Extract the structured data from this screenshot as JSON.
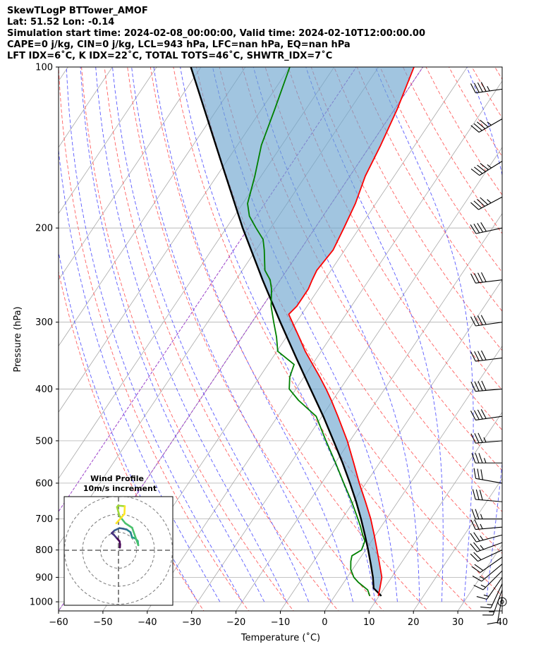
{
  "header": {
    "title": "SkewTLogP BTTower_AMOF",
    "location": "Lat: 51.52   Lon: -0.14",
    "times": "Simulation start time: 2024-02-08_00:00:00, Valid time: 2024-02-10T12:00:00.00",
    "indices1": "CAPE=0 j/kg, CIN=0 j/kg, LCL=943 hPa, LFC=nan hPa, EQ=nan hPa",
    "indices2": "LFT IDX=6˚C, K IDX=22˚C, TOTAL TOTS=46˚C, SHWTR_IDX=7˚C"
  },
  "chart_data": {
    "type": "line",
    "skew_t": true,
    "xlabel": "Temperature (˚C)",
    "ylabel": "Pressure (hPa)",
    "xlim": [
      -60,
      40
    ],
    "ylim": [
      1040,
      100
    ],
    "yscale": "log",
    "xticks": [
      -60,
      -50,
      -40,
      -30,
      -20,
      -10,
      0,
      10,
      20,
      30,
      40
    ],
    "xtick_labels": [
      "−60",
      "−50",
      "−40",
      "−30",
      "−20",
      "−10",
      "0",
      "10",
      "20",
      "30",
      "40"
    ],
    "yticks": [
      100,
      200,
      300,
      400,
      500,
      600,
      700,
      800,
      900,
      1000
    ],
    "grid": true,
    "fill_between_parcel_and_temperature": true,
    "series": [
      {
        "key": "temperature",
        "color": "#ff0000",
        "p": [
          975,
          950,
          900,
          850,
          800,
          750,
          700,
          650,
          600,
          550,
          500,
          450,
          420,
          400,
          380,
          360,
          340,
          320,
          300,
          290,
          280,
          260,
          250,
          240,
          220,
          200,
          180,
          160,
          140,
          120,
          100
        ],
        "t": [
          9.8,
          9.2,
          7.8,
          5.3,
          2.6,
          -0.3,
          -3.5,
          -7.3,
          -11.5,
          -15.8,
          -20.6,
          -26.4,
          -30.3,
          -33.2,
          -36.4,
          -39.9,
          -43.6,
          -47.1,
          -50.9,
          -52.9,
          -52.3,
          -52.3,
          -52.8,
          -53.2,
          -52.6,
          -53.5,
          -54.6,
          -56.5,
          -57.7,
          -59.4,
          -62.0
        ]
      },
      {
        "key": "dewpoint",
        "color": "#008000",
        "p": [
          975,
          950,
          920,
          900,
          870,
          840,
          820,
          800,
          770,
          750,
          720,
          700,
          650,
          600,
          550,
          500,
          450,
          420,
          400,
          380,
          360,
          340,
          320,
          300,
          280,
          260,
          250,
          240,
          220,
          210,
          200,
          190,
          180,
          160,
          140,
          120,
          100
        ],
        "t": [
          7.9,
          6.5,
          3.3,
          1.5,
          -0.4,
          -1.6,
          -2.2,
          -0.9,
          -1.5,
          -2.9,
          -4.9,
          -6.4,
          -10.4,
          -15.0,
          -19.9,
          -25.4,
          -31.3,
          -37.7,
          -41.5,
          -43.2,
          -44.1,
          -49.8,
          -52.2,
          -55.1,
          -58.1,
          -60.6,
          -62.3,
          -64.9,
          -68.1,
          -70.0,
          -73.3,
          -76.6,
          -78.9,
          -81.4,
          -84.6,
          -87.0,
          -90.0
        ]
      },
      {
        "key": "parcel",
        "color": "#000000",
        "p": [
          975,
          943,
          900,
          850,
          800,
          750,
          700,
          650,
          600,
          550,
          500,
          450,
          400,
          350,
          300,
          250,
          200,
          150,
          100
        ],
        "t": [
          10.5,
          7.6,
          5.8,
          3.3,
          0.6,
          -2.4,
          -5.7,
          -9.4,
          -13.6,
          -18.3,
          -23.7,
          -29.7,
          -36.7,
          -44.6,
          -53.6,
          -64.0,
          -76.3,
          -91.3,
          -112.3
        ]
      }
    ],
    "hodograph": {
      "title": "Wind Profile",
      "subtitle": "10m/s increment",
      "ring_speeds": [
        10,
        20,
        30
      ],
      "u": [
        0.8,
        0.9,
        0.6,
        -1.2,
        -2.5,
        -3.8,
        -2.2,
        0.5,
        2.5,
        4.6,
        6.7,
        7.5,
        9.6,
        10.7,
        11.0,
        7.6,
        3.8,
        0.6,
        -0.8,
        -0.2,
        3.5,
        3.3,
        -1.2
      ],
      "v": [
        1.5,
        3.2,
        5.0,
        7.0,
        8.5,
        9.5,
        11.0,
        12.3,
        12.0,
        11.5,
        10.0,
        7.3,
        6.4,
        5.1,
        2.8,
        12.5,
        15.0,
        19.0,
        24.0,
        24.8,
        24.5,
        20.2,
        15.0
      ]
    },
    "barbs": {
      "p": [
        1000,
        975,
        950,
        925,
        900,
        875,
        850,
        825,
        800,
        775,
        750,
        725,
        700,
        650,
        600,
        550,
        500,
        450,
        400,
        350,
        300,
        250,
        200,
        175,
        150,
        125,
        110
      ],
      "speed_kt": [
        0,
        10,
        15,
        15,
        15,
        15,
        15,
        20,
        20,
        25,
        25,
        25,
        25,
        30,
        30,
        35,
        35,
        40,
        40,
        40,
        40,
        40,
        40,
        45,
        45,
        45,
        45
      ],
      "direction_deg": [
        0,
        190,
        200,
        205,
        215,
        225,
        230,
        235,
        245,
        250,
        255,
        265,
        270,
        275,
        280,
        270,
        265,
        262,
        265,
        263,
        262,
        263,
        258,
        242,
        238,
        240,
        262
      ]
    }
  }
}
